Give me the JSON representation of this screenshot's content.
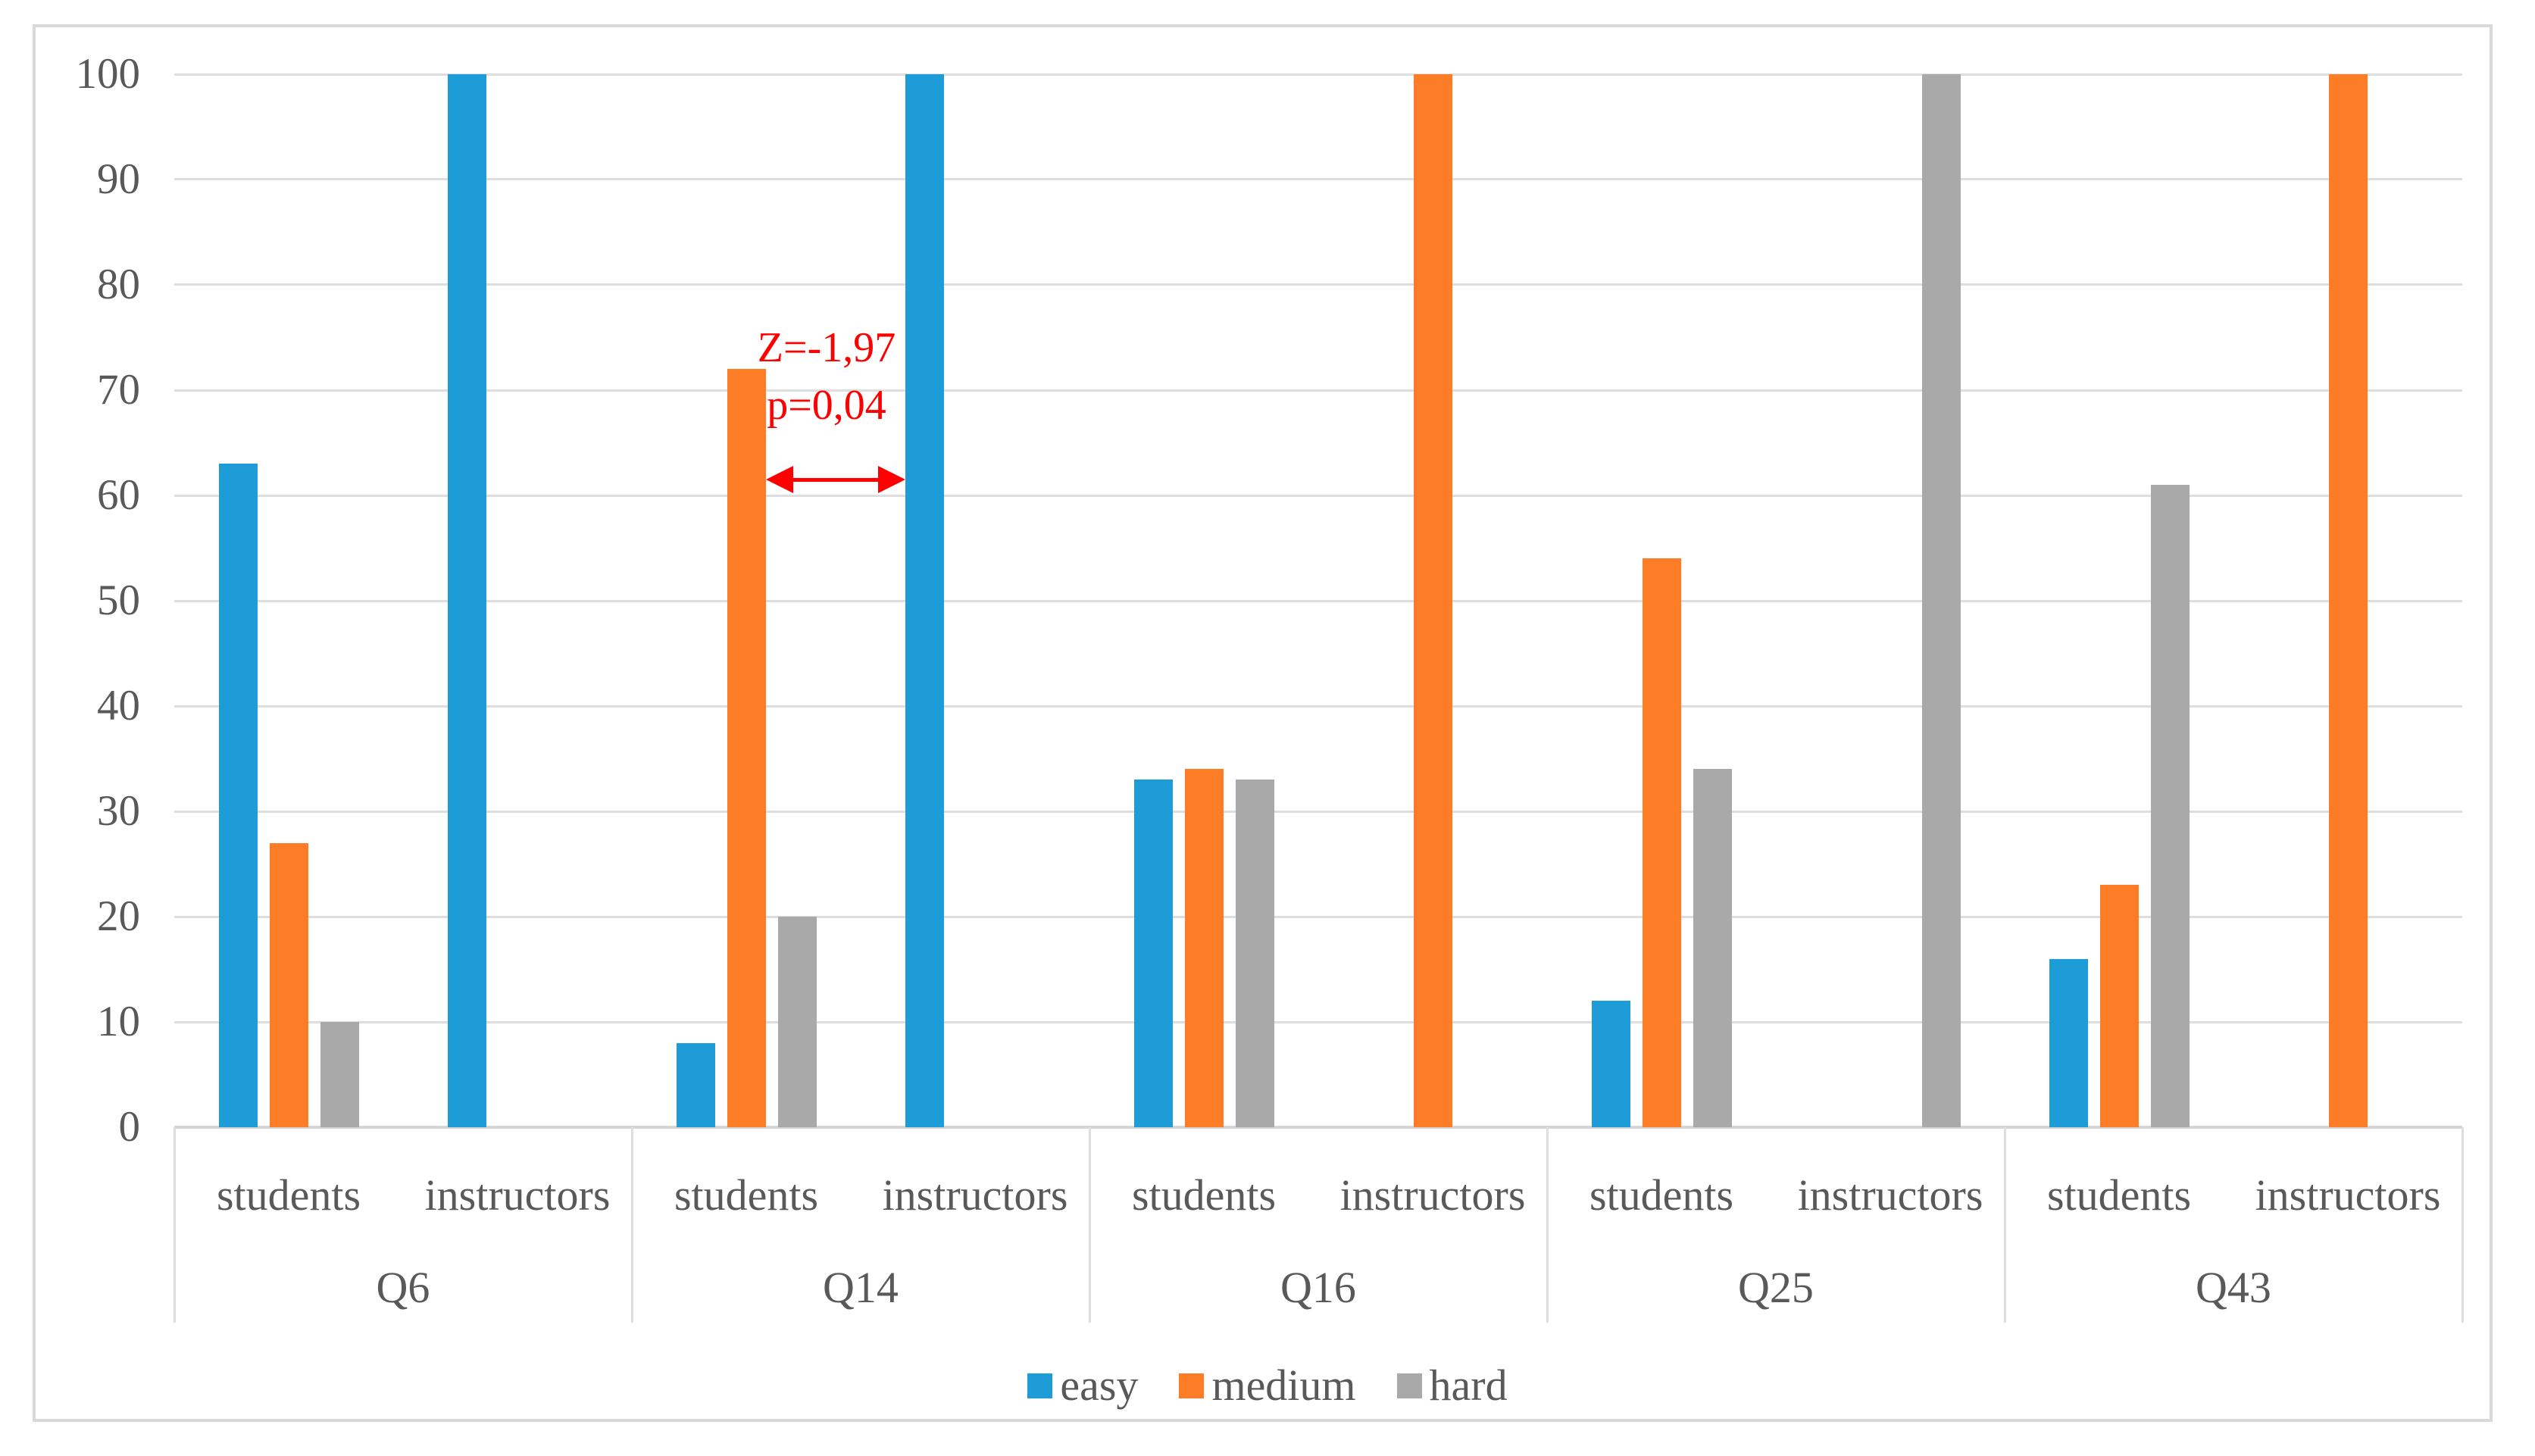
{
  "chart_data": {
    "type": "bar",
    "title": "",
    "xlabel": "",
    "ylabel": "",
    "y_axis": {
      "min": 0,
      "max": 100,
      "step": 10,
      "ticks": [
        "0",
        "10",
        "20",
        "30",
        "40",
        "50",
        "60",
        "70",
        "80",
        "90",
        "100"
      ]
    },
    "grid": true,
    "legend_position": "bottom-center",
    "series": [
      {
        "name": "easy",
        "color": "#1E9CD8"
      },
      {
        "name": "medium",
        "color": "#FC7D26"
      },
      {
        "name": "hard",
        "color": "#A9A9A9"
      }
    ],
    "groups": [
      {
        "label": "Q6",
        "subgroups": [
          {
            "label": "students",
            "values": [
              63,
              27,
              10
            ]
          },
          {
            "label": "instructors",
            "values": [
              100,
              0,
              0
            ]
          }
        ]
      },
      {
        "label": "Q14",
        "subgroups": [
          {
            "label": "students",
            "values": [
              8,
              72,
              20
            ]
          },
          {
            "label": "instructors",
            "values": [
              100,
              0,
              0
            ]
          }
        ]
      },
      {
        "label": "Q16",
        "subgroups": [
          {
            "label": "students",
            "values": [
              33,
              34,
              33
            ]
          },
          {
            "label": "instructors",
            "values": [
              0,
              100,
              0
            ]
          }
        ]
      },
      {
        "label": "Q25",
        "subgroups": [
          {
            "label": "students",
            "values": [
              12,
              54,
              34
            ]
          },
          {
            "label": "instructors",
            "values": [
              0,
              0,
              100
            ]
          }
        ]
      },
      {
        "label": "Q43",
        "subgroups": [
          {
            "label": "students",
            "values": [
              16,
              23,
              61
            ]
          },
          {
            "label": "instructors",
            "values": [
              0,
              100,
              0
            ]
          }
        ]
      }
    ],
    "annotation": {
      "line1": "Z=-1,97",
      "line2": "p=0,04",
      "color": "#FF0000",
      "arrow_at_value": 61.5,
      "arrow_between": "Q14 students medium bar and Q14 instructors easy bar"
    },
    "colors": {
      "gridline": "#DEDEDE",
      "axis_line": "#D6D6D6",
      "figure_border": "#D9D9D9",
      "text": "#595959",
      "background": "#FFFFFF"
    }
  }
}
